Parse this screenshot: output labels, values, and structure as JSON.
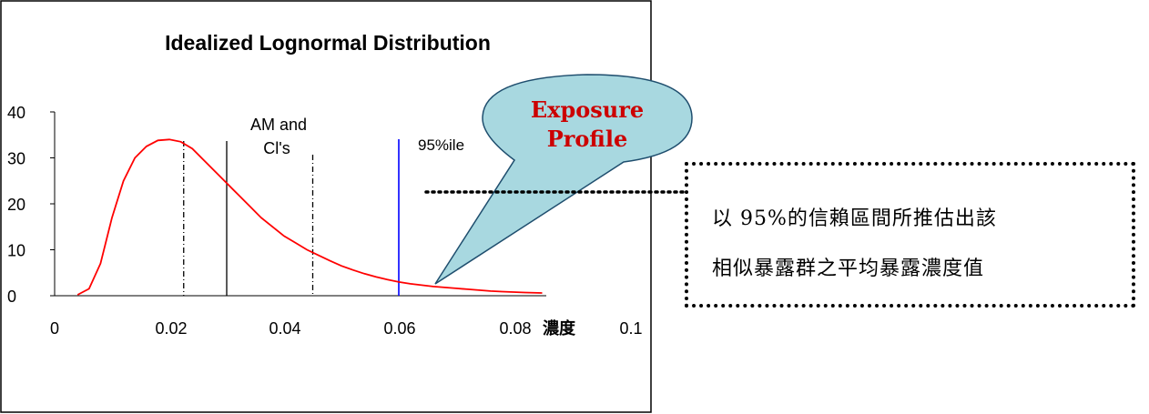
{
  "chart_data": {
    "type": "line",
    "title": "Idealized Lognormal Distribution",
    "xlabel": "濃度",
    "ylabel": "",
    "xlim": [
      0,
      0.1
    ],
    "ylim": [
      0,
      40
    ],
    "x_ticks": [
      "0",
      "0.02",
      "0.04",
      "0.06",
      "0.08",
      "0.1"
    ],
    "y_ticks": [
      "0",
      "10",
      "20",
      "30",
      "40"
    ],
    "series": [
      {
        "color": "#ff0000",
        "x": [
          0.004,
          0.006,
          0.008,
          0.01,
          0.012,
          0.014,
          0.016,
          0.018,
          0.02,
          0.022,
          0.024,
          0.026,
          0.028,
          0.03,
          0.032,
          0.034,
          0.036,
          0.038,
          0.04,
          0.042,
          0.044,
          0.046,
          0.048,
          0.05,
          0.052,
          0.054,
          0.056,
          0.058,
          0.06,
          0.062,
          0.064,
          0.066,
          0.068,
          0.07,
          0.072,
          0.074,
          0.076,
          0.078,
          0.08,
          0.082,
          0.085
        ],
        "y": [
          0.2,
          1.5,
          7,
          17,
          25,
          30,
          32.5,
          33.8,
          34,
          33.5,
          32,
          29.5,
          27,
          24.5,
          22,
          19.5,
          17,
          15,
          13,
          11.5,
          10,
          8.8,
          7.6,
          6.5,
          5.6,
          4.8,
          4.1,
          3.5,
          3.0,
          2.6,
          2.3,
          2.0,
          1.8,
          1.6,
          1.4,
          1.2,
          1.0,
          0.9,
          0.8,
          0.7,
          0.6
        ]
      }
    ],
    "reference_lines": [
      {
        "x": 0.0225,
        "style": "dash-dot",
        "color": "#000000"
      },
      {
        "x": 0.03,
        "style": "solid",
        "color": "#000000"
      },
      {
        "x": 0.045,
        "style": "dash-dot",
        "color": "#000000"
      },
      {
        "x": 0.06,
        "style": "solid",
        "color": "#0000ff"
      }
    ],
    "annotations": [
      {
        "text_lines": [
          "AM and",
          "Cl's"
        ]
      },
      {
        "text": "95%ile"
      }
    ],
    "grid": false
  },
  "callout": {
    "line1": "Exposure",
    "line2": "Profile",
    "text_color": "#cc0000",
    "fill_color": "#a8d8e0"
  },
  "annotation_box": {
    "line1": "以 95%的信賴區間所推估出該",
    "line2": "相似暴露群之平均暴露濃度值"
  }
}
